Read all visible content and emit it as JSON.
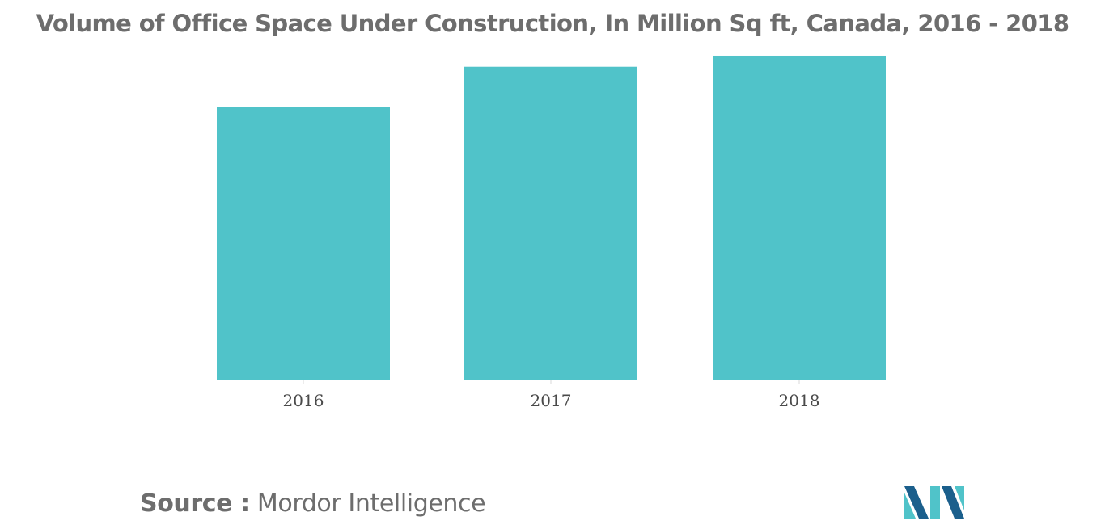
{
  "title": "Volume of Office Space Under Construction, In Million Sq ft, Canada, 2016 - 2018",
  "source": {
    "prefix": "Source :",
    "name": "Mordor Intelligence"
  },
  "colors": {
    "bar": "#50c3c9",
    "text": "#6d6d6d",
    "axis": "#e5e5e5",
    "logo_dark": "#1b5f8c",
    "logo_light": "#50c3c9"
  },
  "chart_data": {
    "type": "bar",
    "categories": [
      "2016",
      "2017",
      "2018"
    ],
    "values": [
      12.3,
      14.1,
      14.6
    ],
    "ylim": [
      0,
      15
    ],
    "title": "Volume of Office Space Under Construction, In Million Sq ft, Canada, 2016 - 2018",
    "xlabel": "",
    "ylabel": "",
    "grid": false,
    "legend": "none"
  }
}
